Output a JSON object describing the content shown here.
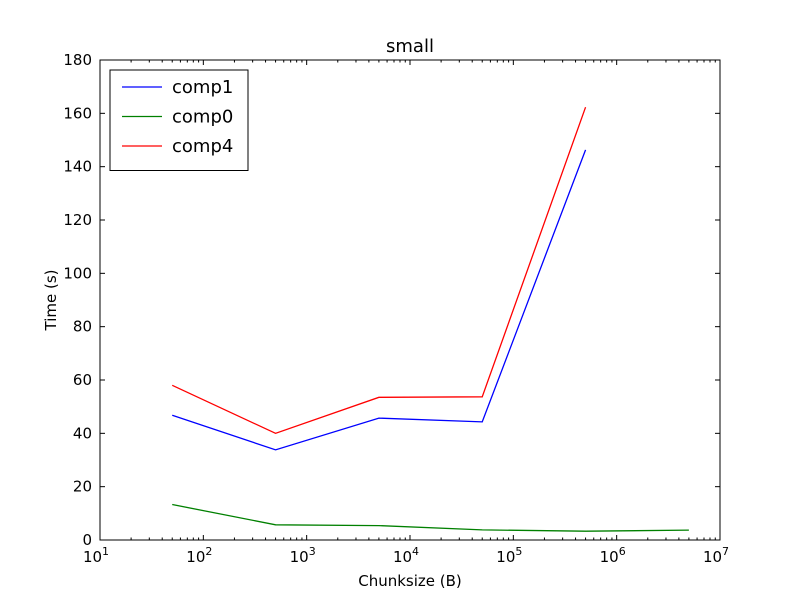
{
  "chart_data": {
    "type": "line",
    "title": "small",
    "xlabel": "Chunksize (B)",
    "ylabel": "Time (s)",
    "xscale": "log",
    "xlim": [
      10,
      10000000
    ],
    "ylim": [
      0,
      180
    ],
    "x_ticks": [
      {
        "value": 10,
        "base": "10",
        "exp": "1"
      },
      {
        "value": 100,
        "base": "10",
        "exp": "2"
      },
      {
        "value": 1000,
        "base": "10",
        "exp": "3"
      },
      {
        "value": 10000,
        "base": "10",
        "exp": "4"
      },
      {
        "value": 100000,
        "base": "10",
        "exp": "5"
      },
      {
        "value": 1000000,
        "base": "10",
        "exp": "6"
      },
      {
        "value": 10000000,
        "base": "10",
        "exp": "7"
      }
    ],
    "y_ticks": [
      "0",
      "20",
      "40",
      "60",
      "80",
      "100",
      "120",
      "140",
      "160",
      "180"
    ],
    "grid": false,
    "legend_position": "top-left",
    "series": [
      {
        "name": "comp1",
        "color": "#0000ff",
        "x": [
          50,
          500,
          5000,
          50000,
          500000
        ],
        "y": [
          46.8,
          33.8,
          45.7,
          44.3,
          146.3
        ]
      },
      {
        "name": "comp0",
        "color": "#008000",
        "x": [
          50,
          500,
          5000,
          50000,
          500000,
          5000000
        ],
        "y": [
          13.3,
          5.7,
          5.4,
          3.8,
          3.3,
          3.7
        ]
      },
      {
        "name": "comp4",
        "color": "#ff0000",
        "x": [
          50,
          500,
          5000,
          50000,
          500000
        ],
        "y": [
          58.0,
          40.0,
          53.5,
          53.7,
          162.3
        ]
      }
    ]
  }
}
